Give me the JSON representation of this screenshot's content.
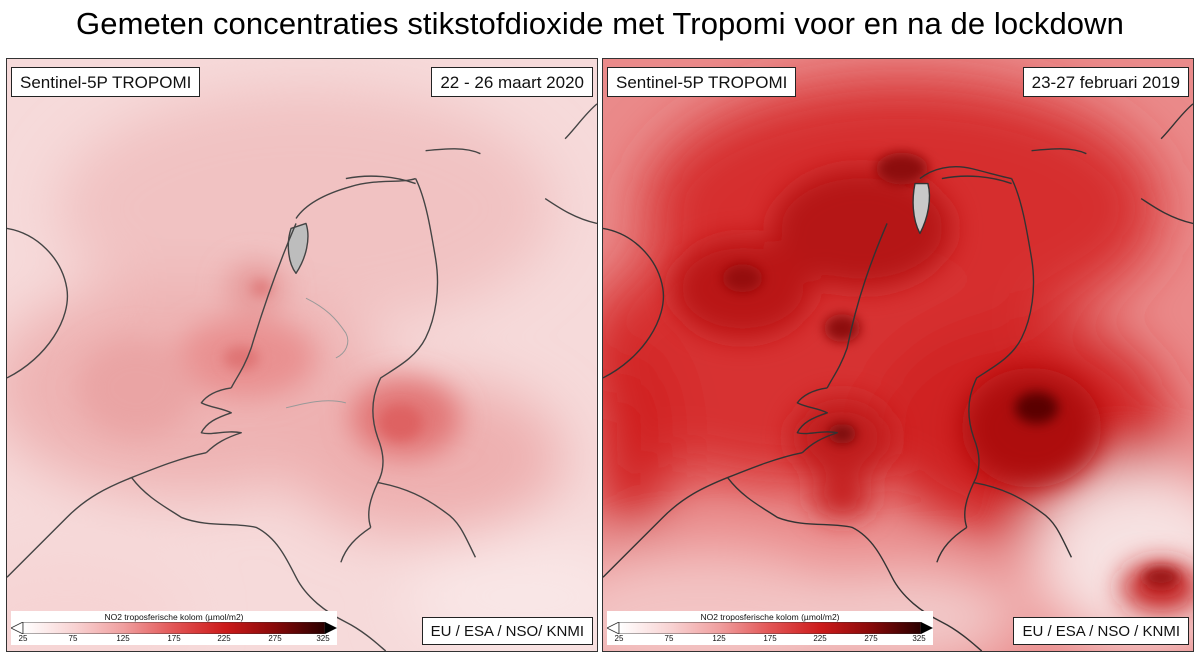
{
  "title": "Gemeten concentraties stikstofdioxide met Tropomi voor en na de lockdown",
  "panels": [
    {
      "satellite_label": "Sentinel-5P TROPOMI",
      "date_label": "22 - 26 maart 2020",
      "source_label": "EU / ESA / NSO/ KNMI",
      "intensity": "low"
    },
    {
      "satellite_label": "Sentinel-5P TROPOMI",
      "date_label": "23-27 februari 2019",
      "source_label": "EU / ESA / NSO / KNMI",
      "intensity": "high"
    }
  ],
  "legend": {
    "title": "NO2 troposferische kolom (µmol/m2)",
    "ticks": [
      "25",
      "75",
      "125",
      "175",
      "225",
      "275",
      "325"
    ],
    "colors": [
      "#ffffff",
      "#f8d3d3",
      "#f0a0a0",
      "#e25555",
      "#cc1a1a",
      "#8a0a0a",
      "#2a0000"
    ]
  }
}
